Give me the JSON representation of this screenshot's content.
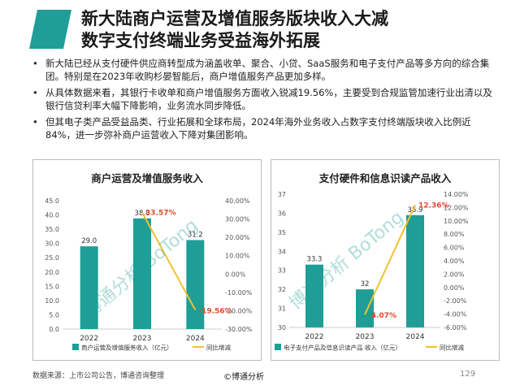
{
  "header": {
    "title_line1": "新大陆商户运营及增值服务版块收入大减",
    "title_line2": "数字支付终端业务受益海外拓展",
    "accent_color": "#1e9e96"
  },
  "bullets": [
    "新大陆已经从支付硬件供应商转型成为涵盖收单、聚合、小贷、SaaS服务和电子支付产品等多方向的综合集团。特别是在2023年收购杉晏智能后，商户增值服务产品更加多样。",
    "从具体数据来看，其银行卡收单和商户增值服务方面收入锐减19.56%，主要受到合规监管加速行业出清以及银行信贷利率大幅下降影响，业务流水同步降低。",
    "但其电子类产品受益品类、行业拓展和全球布局，2024年海外业务收入占数字支付终端版块收入比例近 84%，进一步弥补商户运营收入下降对集团影响。"
  ],
  "watermark_text": "博通分析 BoTong",
  "chart_data": [
    {
      "type": "bar",
      "title": "商户运营及增值服务收入",
      "categories": [
        "2022",
        "2023",
        "2024"
      ],
      "series": [
        {
          "name": "商户运营及增值服务收入（亿元）",
          "type": "bar",
          "axis": "left",
          "values": [
            29.0,
            38.8,
            31.2
          ],
          "labels": [
            "29.0",
            "38.8",
            "31.2"
          ],
          "color": "#1e9e96"
        },
        {
          "name": "同比增减",
          "type": "line",
          "axis": "right",
          "values": [
            null,
            33.57,
            -19.56
          ],
          "labels": [
            "",
            "33.57%",
            "-19.56%"
          ],
          "color": "#f2c12e"
        }
      ],
      "left_axis": {
        "min": 0,
        "max": 45,
        "ticks": [
          "0.0",
          "5.0",
          "10.0",
          "15.0",
          "20.0",
          "25.0",
          "30.0",
          "35.0",
          "40.0",
          "45.0"
        ]
      },
      "right_axis": {
        "min": -30,
        "max": 40,
        "ticks": [
          "-30.00%",
          "-20.00%",
          "-10.00%",
          "0.00%",
          "10.00%",
          "20.00%",
          "30.00%",
          "40.00%"
        ]
      }
    },
    {
      "type": "bar",
      "title": "支付硬件和信息识读产品收入",
      "categories": [
        "2022",
        "2023",
        "2024"
      ],
      "series": [
        {
          "name": "电子支付产品及信息识读产品 收入（亿元）",
          "type": "bar",
          "axis": "left",
          "values": [
            33.3,
            32,
            35.9
          ],
          "labels": [
            "33.3",
            "32",
            "35.9"
          ],
          "color": "#1e9e96"
        },
        {
          "name": "同比增减",
          "type": "line",
          "axis": "right",
          "values": [
            null,
            -4.07,
            12.36
          ],
          "labels": [
            "",
            "-4.07%",
            "12.36%"
          ],
          "color": "#f2c12e"
        }
      ],
      "left_axis": {
        "min": 30,
        "max": 37,
        "ticks": [
          "30",
          "31",
          "32",
          "33",
          "34",
          "35",
          "36",
          "37"
        ]
      },
      "right_axis": {
        "min": -6,
        "max": 14,
        "ticks": [
          "-6.00%",
          "-4.00%",
          "-2.00%",
          "0.00%",
          "2.00%",
          "4.00%",
          "6.00%",
          "8.00%",
          "10.00%",
          "12.00%",
          "14.00%"
        ]
      }
    }
  ],
  "footer": {
    "source": "数据来源：上市公司公告，博通咨询整理",
    "center": "©博通分析",
    "page": "129"
  }
}
